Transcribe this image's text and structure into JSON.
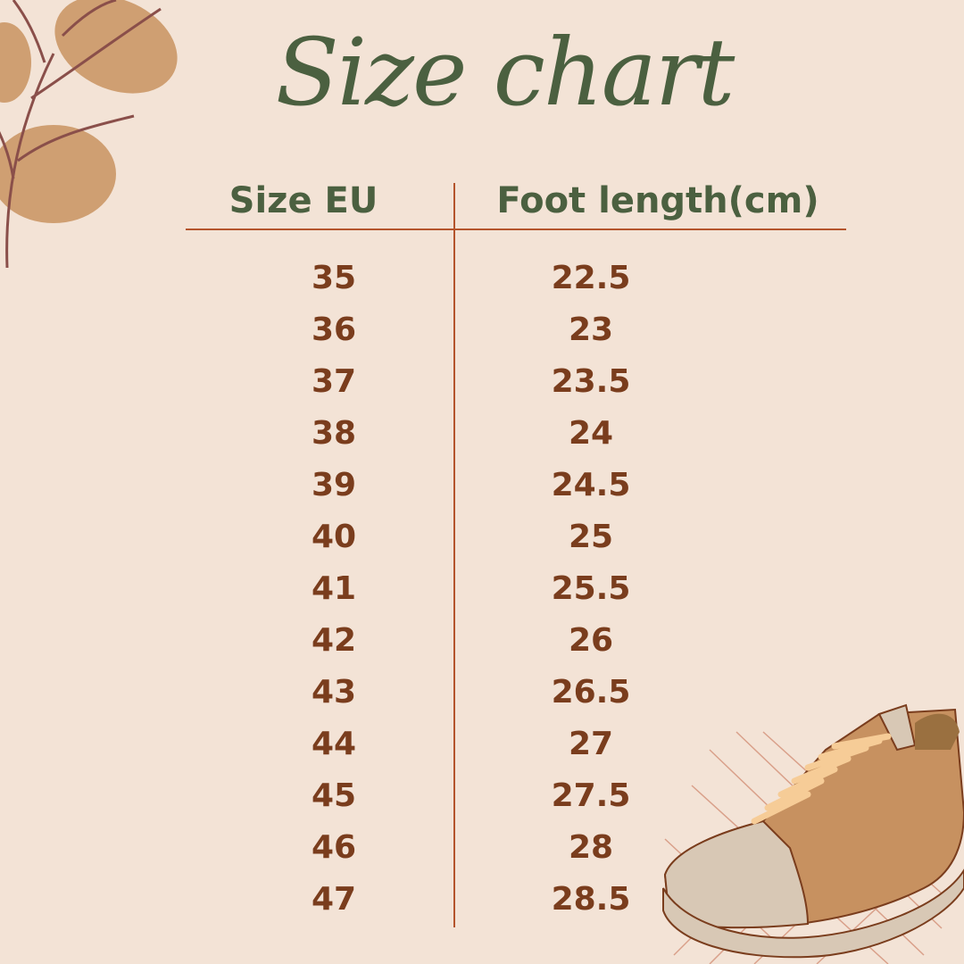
{
  "title": "Size chart",
  "headers": {
    "size": "Size EU",
    "length": "Foot length(cm)"
  },
  "rows": [
    {
      "size": "35",
      "length": "22.5"
    },
    {
      "size": "36",
      "length": "23"
    },
    {
      "size": "37",
      "length": "23.5"
    },
    {
      "size": "38",
      "length": "24"
    },
    {
      "size": "39",
      "length": "24.5"
    },
    {
      "size": "40",
      "length": "25"
    },
    {
      "size": "41",
      "length": "25.5"
    },
    {
      "size": "42",
      "length": "26"
    },
    {
      "size": "43",
      "length": "26.5"
    },
    {
      "size": "44",
      "length": "27"
    },
    {
      "size": "45",
      "length": "27.5"
    },
    {
      "size": "46",
      "length": "28"
    },
    {
      "size": "47",
      "length": "28.5"
    }
  ],
  "colors": {
    "background": "#f3e3d6",
    "title": "#4b6040",
    "values": "#7a3d1d",
    "lines": "#b4542c",
    "leaf": "#cf9f72"
  },
  "icons": [
    "leaf-branch-decoration",
    "sneaker-illustration"
  ]
}
